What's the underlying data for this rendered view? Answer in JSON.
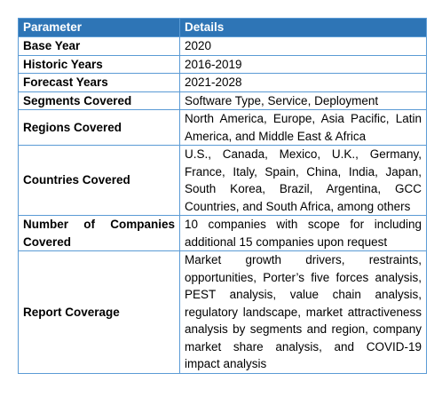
{
  "table": {
    "header": {
      "parameter": "Parameter",
      "details": "Details"
    },
    "rows": [
      {
        "parameter": "Base Year",
        "details": "2020"
      },
      {
        "parameter": "Historic Years",
        "details": "2016-2019"
      },
      {
        "parameter": "Forecast Years",
        "details": "2021-2028"
      },
      {
        "parameter": "Segments Covered",
        "details": "Software Type, Service, Deployment"
      },
      {
        "parameter": "Regions Covered",
        "details": "North America, Europe, Asia Pacific, Latin America, and Middle East & Africa"
      },
      {
        "parameter": "Countries Covered",
        "details": "U.S., Canada, Mexico, U.K., Germany, France, Italy, Spain, China, India, Japan, South Korea, Brazil, Argentina, GCC Countries, and South Africa, among others"
      },
      {
        "parameter": "Number of Companies Covered",
        "details": "10 companies with scope for including additional 15 companies upon request"
      },
      {
        "parameter": "Report Coverage",
        "details": "Market growth drivers, restraints, opportunities, Porter’s five forces analysis, PEST analysis, value chain analysis, regulatory landscape, market attractiveness analysis by segments and region, company market share analysis, and COVID-19 impact analysis"
      }
    ]
  }
}
